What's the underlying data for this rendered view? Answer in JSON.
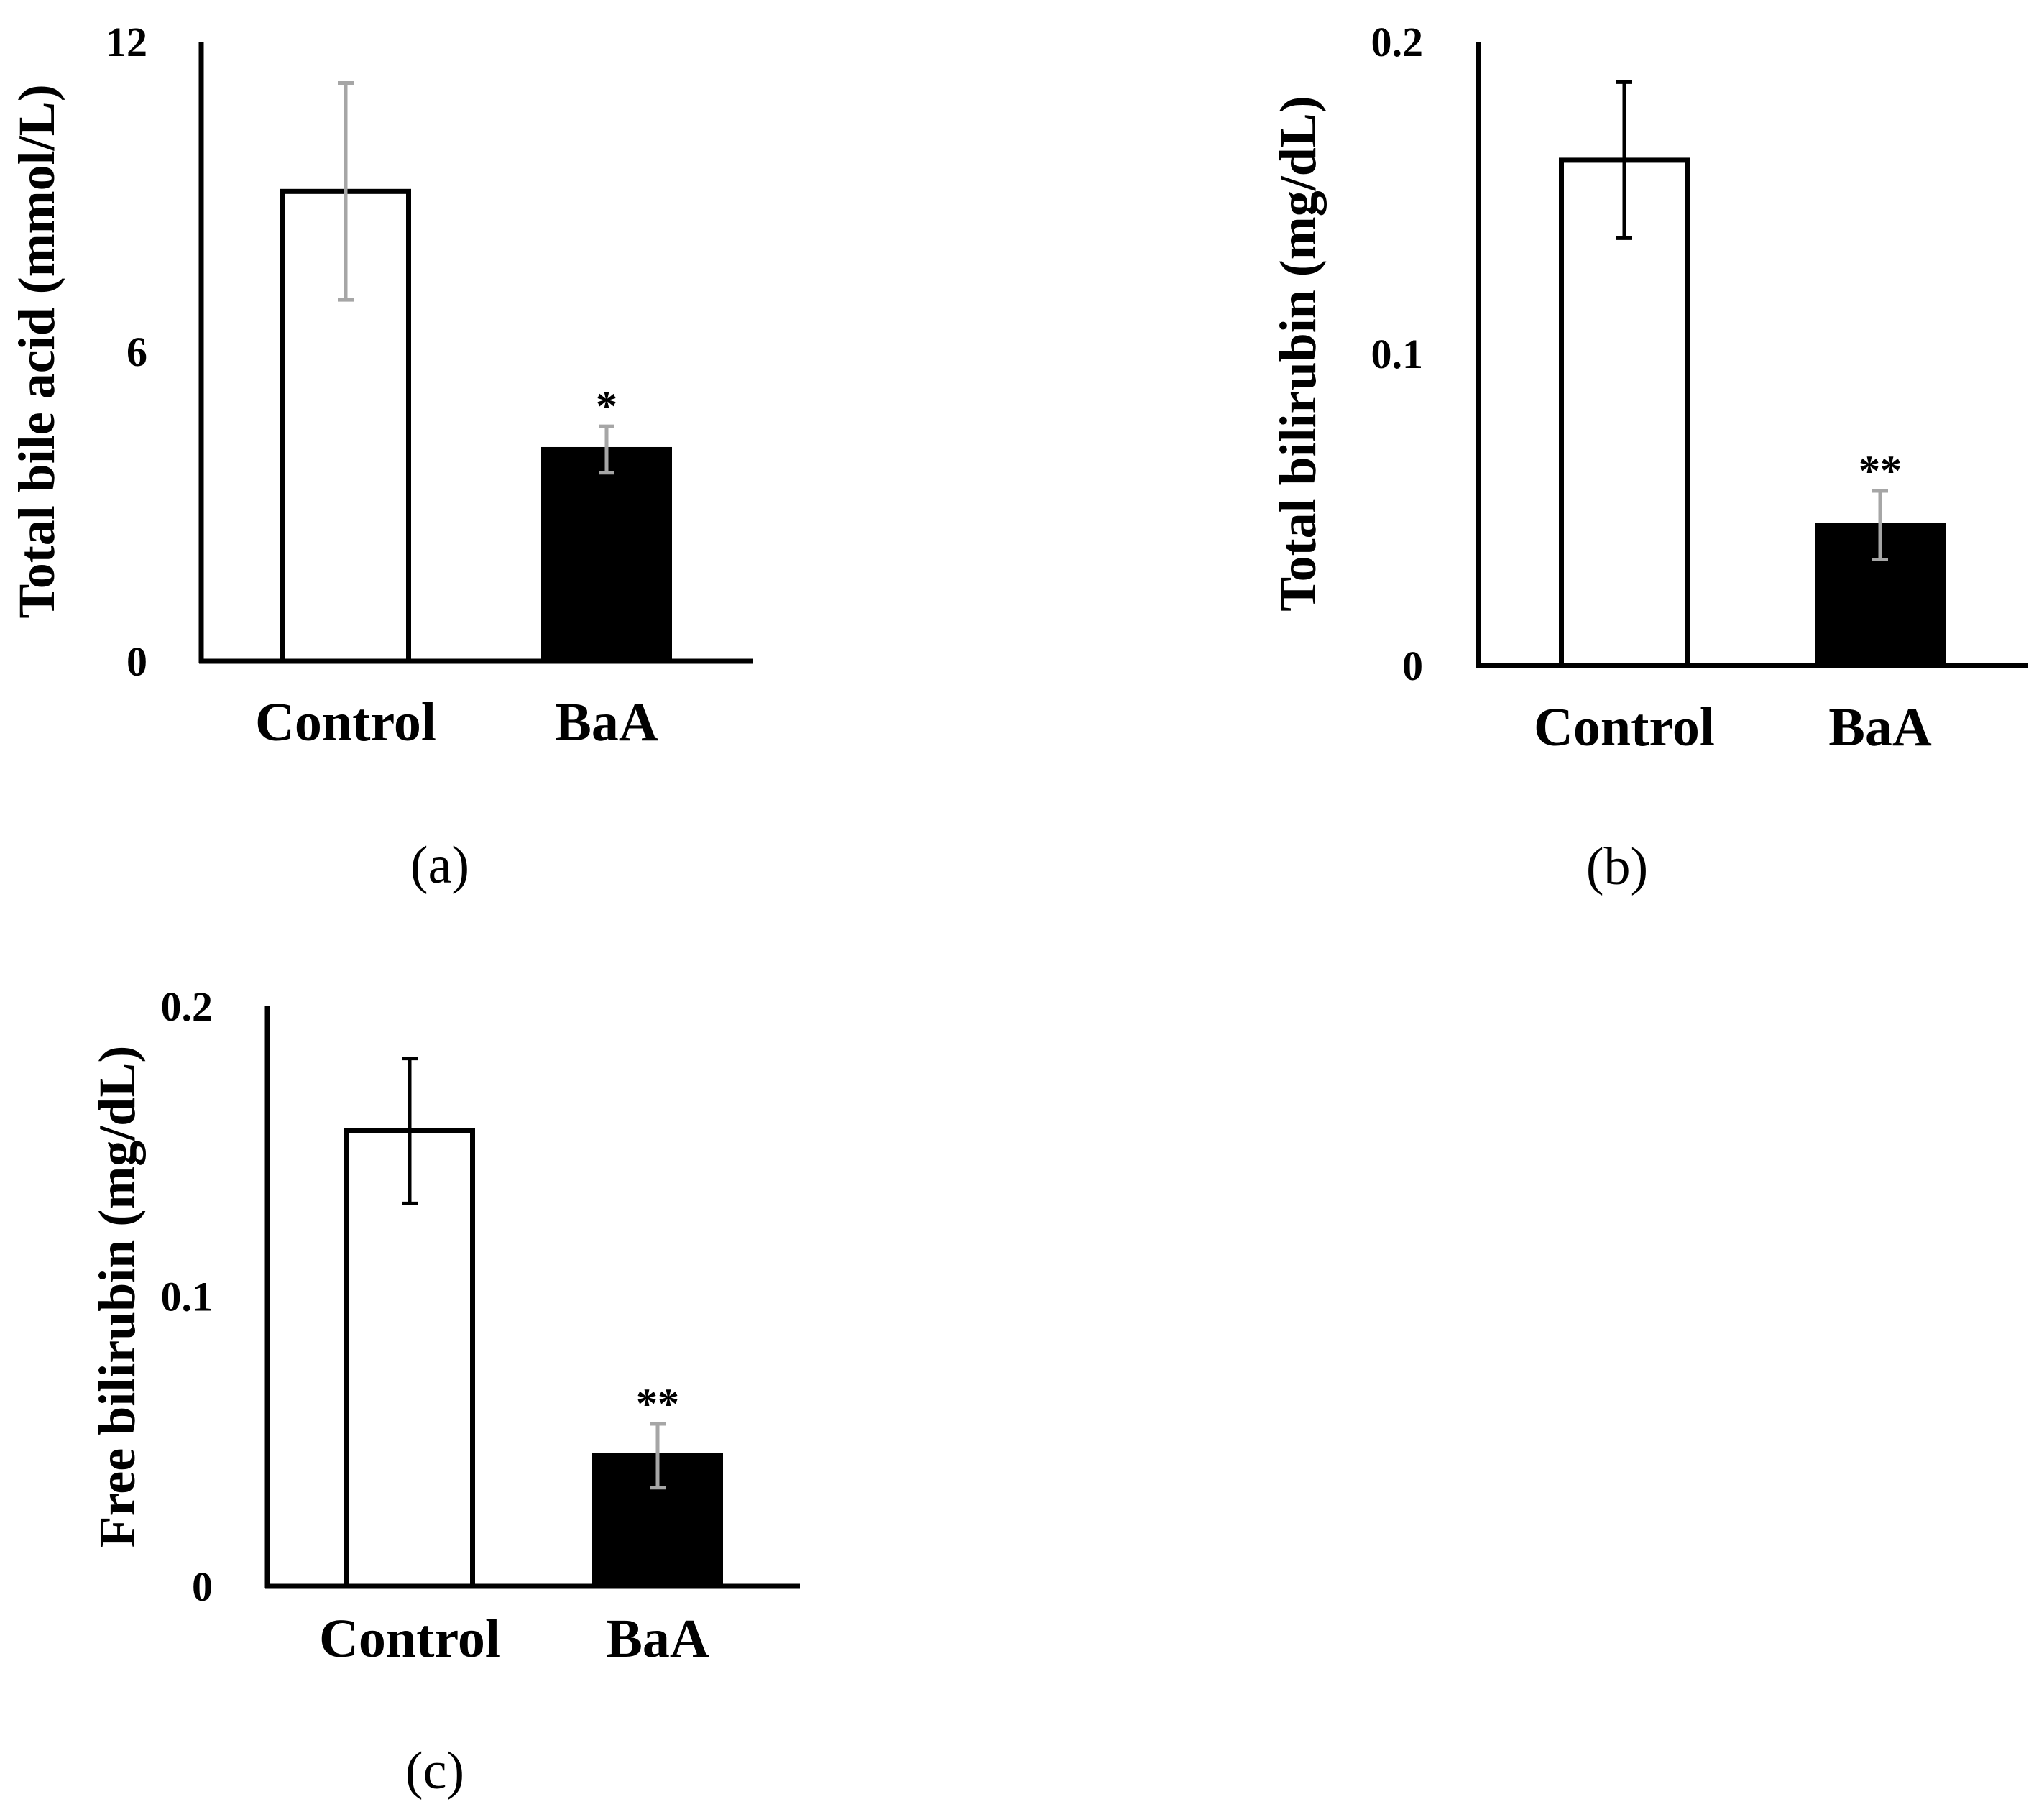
{
  "chart_data": [
    {
      "type": "bar",
      "panel_label": "(a)",
      "ylabel": "Total bile acid (mmol/L)",
      "categories": [
        "Control",
        "BaA"
      ],
      "values": [
        9.1,
        4.1
      ],
      "errors": [
        2.1,
        0.45
      ],
      "significance": [
        "",
        "*"
      ],
      "bar_fill": [
        "#ffffff",
        "#000000"
      ],
      "error_colors": [
        "#a6a6a6",
        "#a6a6a6"
      ],
      "ylim": [
        0,
        12
      ],
      "yticks": [
        0,
        6,
        12
      ],
      "ytick_labels": [
        "0",
        "6",
        "12"
      ]
    },
    {
      "type": "bar",
      "panel_label": "(b)",
      "ylabel": "Total bilirubin (mg/dL)",
      "categories": [
        "Control",
        "BaA"
      ],
      "values": [
        0.162,
        0.045
      ],
      "errors": [
        0.025,
        0.011
      ],
      "significance": [
        "",
        "**"
      ],
      "bar_fill": [
        "#ffffff",
        "#000000"
      ],
      "error_colors": [
        "#000000",
        "#a6a6a6"
      ],
      "ylim": [
        0,
        0.2
      ],
      "yticks": [
        0,
        0.1,
        0.2
      ],
      "ytick_labels": [
        "0",
        "0.1",
        "0.2"
      ]
    },
    {
      "type": "bar",
      "panel_label": "(c)",
      "ylabel": "Free bilirubin (mg/dL)",
      "categories": [
        "Control",
        "BaA"
      ],
      "values": [
        0.157,
        0.045
      ],
      "errors": [
        0.025,
        0.011
      ],
      "significance": [
        "",
        "**"
      ],
      "bar_fill": [
        "#ffffff",
        "#000000"
      ],
      "error_colors": [
        "#000000",
        "#a6a6a6"
      ],
      "ylim": [
        0,
        0.2
      ],
      "yticks": [
        0,
        0.1,
        0.2
      ],
      "ytick_labels": [
        "0",
        "0.1",
        "0.2"
      ]
    }
  ]
}
